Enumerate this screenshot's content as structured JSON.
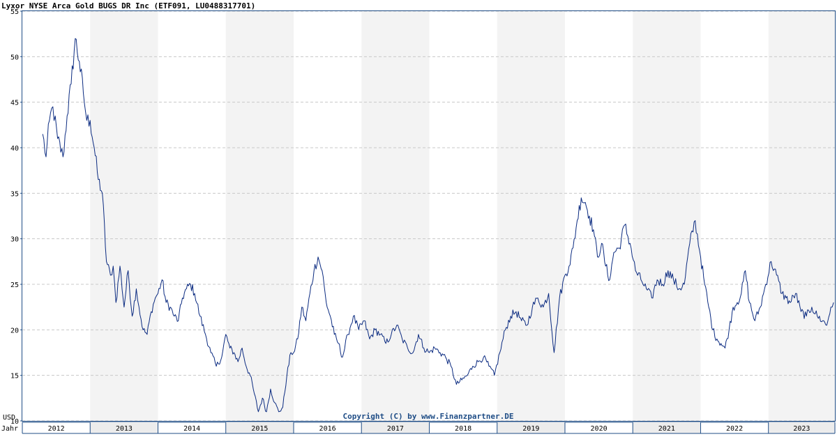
{
  "title": "Lyxor NYSE Arca Gold BUGS DR Inc (ETF091, LU0488317701)",
  "copyright": "Copyright (C) by www.Finanzpartner.DE",
  "axis": {
    "currency_label": "USD",
    "year_label": "Jahr"
  },
  "colors": {
    "line": "#0a2a80",
    "band": "#f3f3f3",
    "grid": "#c8c8c8",
    "axis": "#1f4d86",
    "copyright": "#1f4d86"
  },
  "chart_data": {
    "type": "line",
    "title": "Lyxor NYSE Arca Gold BUGS DR Inc (ETF091, LU0488317701)",
    "ylabel": "USD",
    "xlabel": "Jahr",
    "ylim": [
      10,
      55
    ],
    "y_ticks": [
      10,
      15,
      20,
      25,
      30,
      35,
      40,
      45,
      50,
      55
    ],
    "grid": true,
    "x_domain": [
      2012.0,
      2023.98
    ],
    "years": [
      "2012",
      "2013",
      "2014",
      "2015",
      "2016",
      "2017",
      "2018",
      "2019",
      "2020",
      "2021",
      "2022",
      "2023"
    ],
    "series": [
      {
        "x": [
          2012.3,
          2012.35,
          2012.4,
          2012.45,
          2012.52,
          2012.6,
          2012.66,
          2012.72,
          2012.78,
          2012.84,
          2012.9,
          2012.95,
          2013.0,
          2013.06,
          2013.12,
          2013.18,
          2013.24,
          2013.3,
          2013.34,
          2013.38,
          2013.44,
          2013.5,
          2013.56,
          2013.62,
          2013.68,
          2013.72,
          2013.78,
          2013.84,
          2013.9,
          2013.96,
          2014.0,
          2014.06,
          2014.12,
          2014.18,
          2014.24,
          2014.3,
          2014.36,
          2014.42,
          2014.48,
          2014.54,
          2014.62,
          2014.7,
          2014.78,
          2014.86,
          2014.94,
          2015.0,
          2015.06,
          2015.12,
          2015.18,
          2015.24,
          2015.3,
          2015.36,
          2015.42,
          2015.48,
          2015.54,
          2015.6,
          2015.66,
          2015.72,
          2015.78,
          2015.84,
          2015.9,
          2015.96,
          2016.0,
          2016.06,
          2016.12,
          2016.18,
          2016.24,
          2016.3,
          2016.36,
          2016.42,
          2016.48,
          2016.54,
          2016.6,
          2016.66,
          2016.72,
          2016.8,
          2016.88,
          2016.96,
          2017.04,
          2017.12,
          2017.2,
          2017.28,
          2017.36,
          2017.44,
          2017.52,
          2017.6,
          2017.68,
          2017.76,
          2017.84,
          2017.92,
          2018.0,
          2018.08,
          2018.16,
          2018.24,
          2018.32,
          2018.4,
          2018.48,
          2018.56,
          2018.64,
          2018.72,
          2018.8,
          2018.88,
          2018.96,
          2019.04,
          2019.12,
          2019.2,
          2019.28,
          2019.36,
          2019.44,
          2019.52,
          2019.6,
          2019.68,
          2019.76,
          2019.84,
          2019.92,
          2020.0,
          2020.06,
          2020.12,
          2020.18,
          2020.24,
          2020.3,
          2020.36,
          2020.42,
          2020.48,
          2020.54,
          2020.6,
          2020.66,
          2020.72,
          2020.8,
          2020.88,
          2020.96,
          2021.04,
          2021.12,
          2021.2,
          2021.28,
          2021.36,
          2021.44,
          2021.52,
          2021.6,
          2021.68,
          2021.76,
          2021.84,
          2021.92,
          2022.0,
          2022.06,
          2022.12,
          2022.18,
          2022.24,
          2022.3,
          2022.36,
          2022.42,
          2022.48,
          2022.54,
          2022.6,
          2022.66,
          2022.72,
          2022.8,
          2022.88,
          2022.96,
          2023.04,
          2023.12,
          2023.2,
          2023.26,
          2023.32,
          2023.4,
          2023.48,
          2023.56,
          2023.64,
          2023.72,
          2023.8,
          2023.86,
          2023.92,
          2023.96
        ],
        "values": [
          41.5,
          39.0,
          43.0,
          44.5,
          41.0,
          39.0,
          43.5,
          47.0,
          52.0,
          49.5,
          46.0,
          43.0,
          43.0,
          40.0,
          36.5,
          35.0,
          27.5,
          26.0,
          27.0,
          23.0,
          27.0,
          22.5,
          26.5,
          21.5,
          24.5,
          22.5,
          20.0,
          19.5,
          22.0,
          23.5,
          24.0,
          25.5,
          23.0,
          22.5,
          21.5,
          21.0,
          23.5,
          24.5,
          25.0,
          24.0,
          21.5,
          19.5,
          17.5,
          16.0,
          17.0,
          19.5,
          18.0,
          17.5,
          16.5,
          18.0,
          16.0,
          15.0,
          13.0,
          11.0,
          12.5,
          11.0,
          13.5,
          12.0,
          11.0,
          11.5,
          15.0,
          17.5,
          17.5,
          19.0,
          22.5,
          21.0,
          24.0,
          26.5,
          28.0,
          26.5,
          23.0,
          21.5,
          19.5,
          18.5,
          17.0,
          19.5,
          21.5,
          20.0,
          21.0,
          19.0,
          20.0,
          19.5,
          18.5,
          19.5,
          20.5,
          19.0,
          18.0,
          17.5,
          19.5,
          18.0,
          17.5,
          18.0,
          17.5,
          17.0,
          16.0,
          14.0,
          14.5,
          15.0,
          16.0,
          16.5,
          17.0,
          16.0,
          15.0,
          17.5,
          20.0,
          21.5,
          22.0,
          21.0,
          20.5,
          22.5,
          23.5,
          22.5,
          24.0,
          17.5,
          23.5,
          26.0,
          27.0,
          29.0,
          32.0,
          34.5,
          34.0,
          32.5,
          31.0,
          28.0,
          29.5,
          27.0,
          25.5,
          28.5,
          29.0,
          31.5,
          29.5,
          26.5,
          25.5,
          24.5,
          23.5,
          25.5,
          25.0,
          26.5,
          25.5,
          24.5,
          25.0,
          29.5,
          32.0,
          28.0,
          25.0,
          22.5,
          20.0,
          19.0,
          18.5,
          18.0,
          20.0,
          22.5,
          23.0,
          24.0,
          26.5,
          23.0,
          21.0,
          22.5,
          25.0,
          27.5,
          26.0,
          24.0,
          23.5,
          23.0,
          24.0,
          22.0,
          21.5,
          22.5,
          21.5,
          21.0,
          20.5,
          22.5,
          23.0
        ]
      }
    ]
  }
}
